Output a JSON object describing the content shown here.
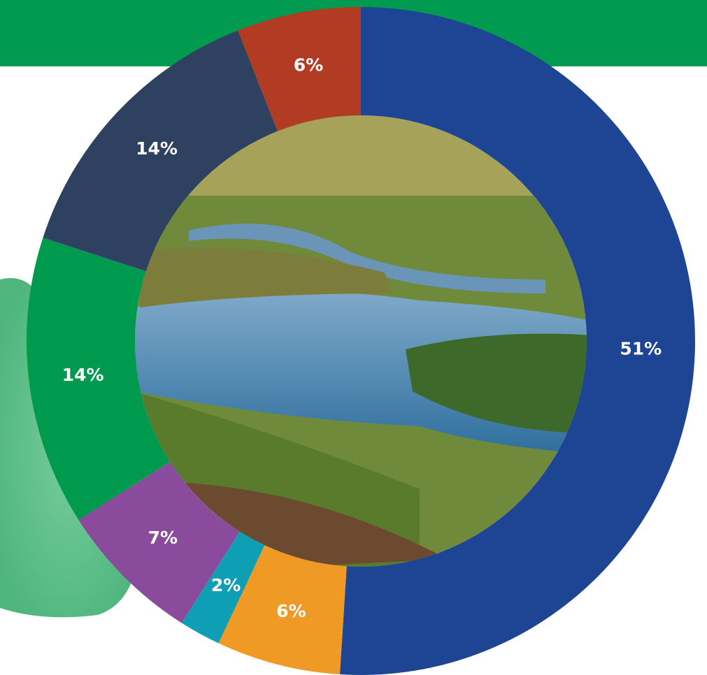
{
  "chart_data": {
    "type": "pie",
    "donut": true,
    "values": [
      51,
      6,
      2,
      7,
      14,
      14,
      6
    ],
    "value_labels": [
      "51%",
      "6%",
      "2%",
      "7%",
      "14%",
      "14%",
      "6%"
    ],
    "colors": [
      "#1d4593",
      "#ee9a25",
      "#0f9fb5",
      "#8a4b9c",
      "#009a4e",
      "#2e4161",
      "#b23b24"
    ]
  }
}
